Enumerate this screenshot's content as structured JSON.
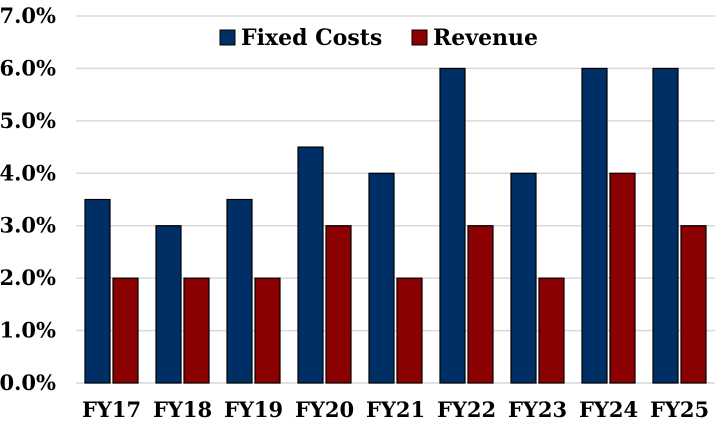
{
  "chart_data": {
    "type": "bar",
    "title": "",
    "xlabel": "",
    "ylabel": "",
    "ylim": [
      0,
      7
    ],
    "y_ticks": [
      "0.0%",
      "1.0%",
      "2.0%",
      "3.0%",
      "4.0%",
      "5.0%",
      "6.0%",
      "7.0%"
    ],
    "categories": [
      "FY17",
      "FY18",
      "FY19",
      "FY20",
      "FY21",
      "FY22",
      "FY23",
      "FY24",
      "FY25"
    ],
    "series": [
      {
        "name": "Fixed Costs",
        "color": "#002f66",
        "values": [
          3.5,
          3.0,
          3.5,
          4.5,
          4.0,
          6.0,
          4.0,
          6.0,
          6.0
        ]
      },
      {
        "name": "Revenue",
        "color": "#8b0000",
        "values": [
          2.0,
          2.0,
          2.0,
          3.0,
          2.0,
          3.0,
          2.0,
          4.0,
          3.0
        ]
      }
    ],
    "legend_position": "top",
    "grid": true
  }
}
